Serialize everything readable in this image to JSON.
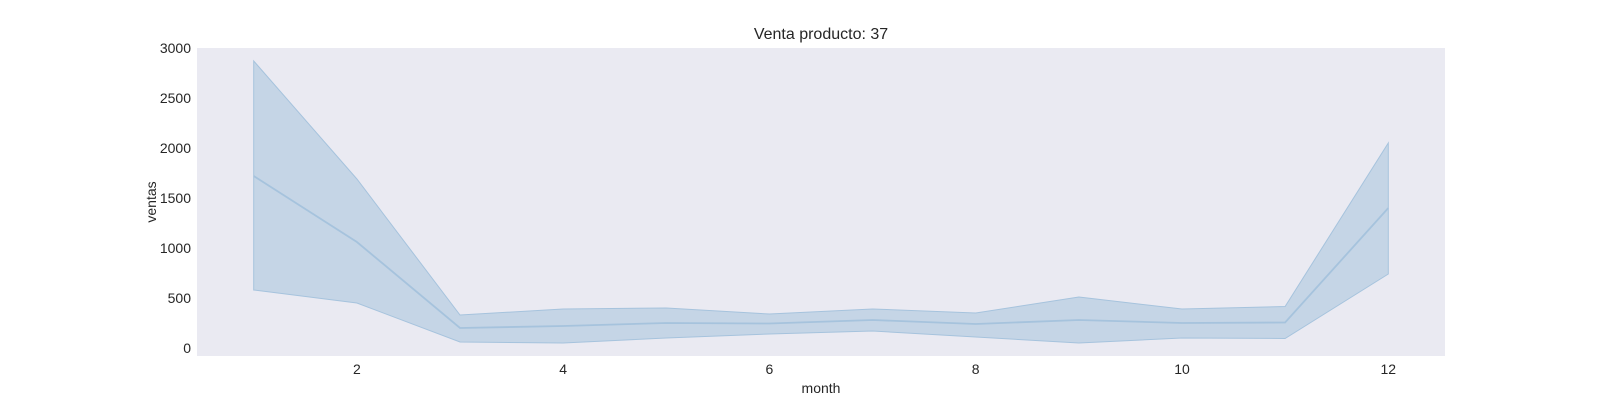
{
  "chart_data": {
    "type": "line",
    "title": "Venta producto: 37",
    "xlabel": "month",
    "ylabel": "ventas",
    "xlim": [
      0.45,
      12.55
    ],
    "ylim": [
      -80,
      3000
    ],
    "xticks": [
      2,
      4,
      6,
      8,
      10,
      12
    ],
    "yticks": [
      0,
      500,
      1000,
      1500,
      2000,
      2500,
      3000
    ],
    "grid": false,
    "background_color": "#eaeaf2",
    "line_color": "#a6c3dd",
    "band_color": "#a6c3dd",
    "x": [
      1,
      2,
      3,
      4,
      5,
      6,
      7,
      8,
      9,
      10,
      11,
      12
    ],
    "series": [
      {
        "values": [
          1720,
          1060,
          200,
          220,
          250,
          245,
          280,
          240,
          280,
          250,
          255,
          1400
        ],
        "ci_upper": [
          2870,
          1690,
          330,
          390,
          400,
          340,
          390,
          350,
          510,
          390,
          415,
          2050
        ],
        "ci_lower": [
          580,
          450,
          60,
          50,
          100,
          140,
          170,
          110,
          50,
          100,
          95,
          740
        ]
      }
    ]
  }
}
